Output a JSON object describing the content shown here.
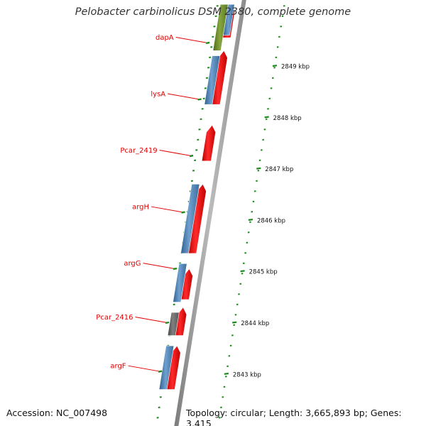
{
  "map_title": "Pelobacter carbinolicus DSM 2380, complete genome",
  "accession_text": "Accession: NC_007498",
  "topology_text": "Topology: circular; Length: 3,665,893 bp; Genes: 3,415",
  "colors": {
    "feature_red": "#ee0000",
    "feature_blue": "#4a7fb0",
    "feature_olive": "#6b8a2a",
    "feature_grey": "#606060",
    "backbone": "#888888",
    "tick_green": "#1b8a1b",
    "label_red": "#e00000"
  },
  "gene_labels": [
    {
      "id": "dapA",
      "text": "dapA",
      "kbp": 2849.45
    },
    {
      "id": "lysA",
      "text": "lysA",
      "kbp": 2848.35
    },
    {
      "id": "pcar_2419",
      "text": "Pcar_2419",
      "kbp": 2847.25
    },
    {
      "id": "argH",
      "text": "argH",
      "kbp": 2846.15
    },
    {
      "id": "argG",
      "text": "argG",
      "kbp": 2845.05
    },
    {
      "id": "pcar_2416",
      "text": "Pcar_2416",
      "kbp": 2844.0
    },
    {
      "id": "argF",
      "text": "argF",
      "kbp": 2843.05
    }
  ],
  "scale_ticks": [
    {
      "kbp": 2849,
      "label": "2849 kbp"
    },
    {
      "kbp": 2848,
      "label": "2848 kbp"
    },
    {
      "kbp": 2847,
      "label": "2847 kbp"
    },
    {
      "kbp": 2846,
      "label": "2846 kbp"
    },
    {
      "kbp": 2845,
      "label": "2845 kbp"
    },
    {
      "kbp": 2844,
      "label": "2844 kbp"
    },
    {
      "kbp": 2843,
      "label": "2843 kbp"
    }
  ],
  "features": [
    {
      "name": "forward-cds",
      "track": "forward",
      "start_kbp": 2849.55,
      "end_kbp": 2850.2,
      "color": "#ee0000"
    },
    {
      "name": "forward-cds",
      "track": "forward",
      "start_kbp": 2848.25,
      "end_kbp": 2849.3,
      "color": "#ee0000"
    },
    {
      "name": "forward-cds",
      "track": "forward",
      "start_kbp": 2847.15,
      "end_kbp": 2847.85,
      "color": "#ee0000"
    },
    {
      "name": "forward-cds",
      "track": "forward",
      "start_kbp": 2845.35,
      "end_kbp": 2846.7,
      "color": "#ee0000"
    },
    {
      "name": "forward-cds",
      "track": "forward",
      "start_kbp": 2844.45,
      "end_kbp": 2845.05,
      "color": "#ee0000"
    },
    {
      "name": "forward-cds",
      "track": "forward",
      "start_kbp": 2843.75,
      "end_kbp": 2844.3,
      "color": "#ee0000"
    },
    {
      "name": "forward-cds",
      "track": "forward",
      "start_kbp": 2842.7,
      "end_kbp": 2843.55,
      "color": "#ee0000"
    },
    {
      "name": "gene-bar",
      "track": "gene",
      "start_kbp": 2849.3,
      "end_kbp": 2850.2,
      "color": "#6b8a2a"
    },
    {
      "name": "gene-bar",
      "track": "gene",
      "start_kbp": 2848.25,
      "end_kbp": 2849.2,
      "color": "#4a7fb0"
    },
    {
      "name": "gene-bar",
      "track": "gene",
      "start_kbp": 2845.35,
      "end_kbp": 2846.7,
      "color": "#4a7fb0"
    },
    {
      "name": "gene-bar",
      "track": "gene",
      "start_kbp": 2844.4,
      "end_kbp": 2845.15,
      "color": "#4a7fb0"
    },
    {
      "name": "gene-bar",
      "track": "gene",
      "start_kbp": 2843.75,
      "end_kbp": 2844.2,
      "color": "#606060"
    },
    {
      "name": "gene-bar",
      "track": "gene",
      "start_kbp": 2842.7,
      "end_kbp": 2843.55,
      "color": "#4a7fb0"
    },
    {
      "name": "gene-bar-overlap",
      "track": "gene-inner",
      "start_kbp": 2849.6,
      "end_kbp": 2850.2,
      "color": "#4a7fb0"
    }
  ]
}
